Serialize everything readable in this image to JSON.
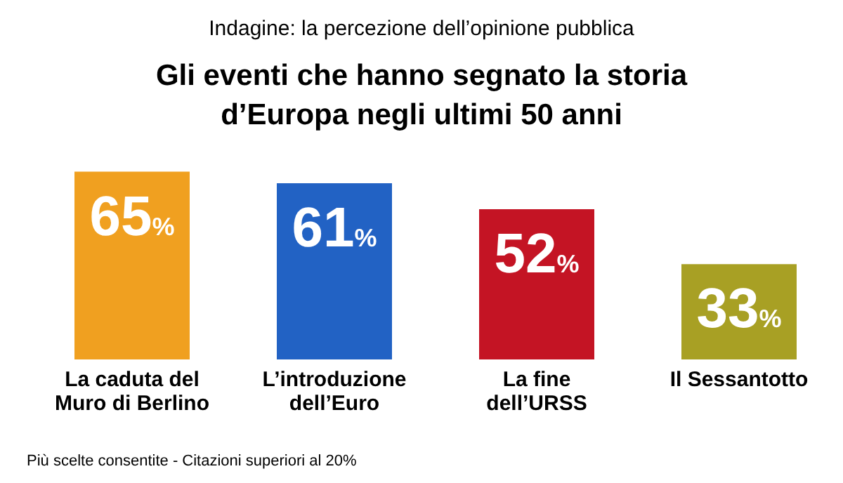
{
  "chart_data": {
    "type": "bar",
    "subtitle": "Indagine: la percezione dell’opinione pubblica",
    "title": "Gli eventi che hanno segnato la storia\nd’Europa negli ultimi 50 anni",
    "categories": [
      "La caduta del\nMuro di Berlino",
      "L’introduzione\ndell’Euro",
      "La fine\ndell’URSS",
      "Il Sessantotto"
    ],
    "values": [
      65,
      61,
      52,
      33
    ],
    "colors": [
      "#f0a020",
      "#2262c4",
      "#c41424",
      "#a8a024"
    ],
    "value_labels": [
      "65%",
      "61%",
      "52%",
      "33%"
    ],
    "annotations": [
      "Più scelte consentite - Citazioni superiori al 20%"
    ]
  }
}
